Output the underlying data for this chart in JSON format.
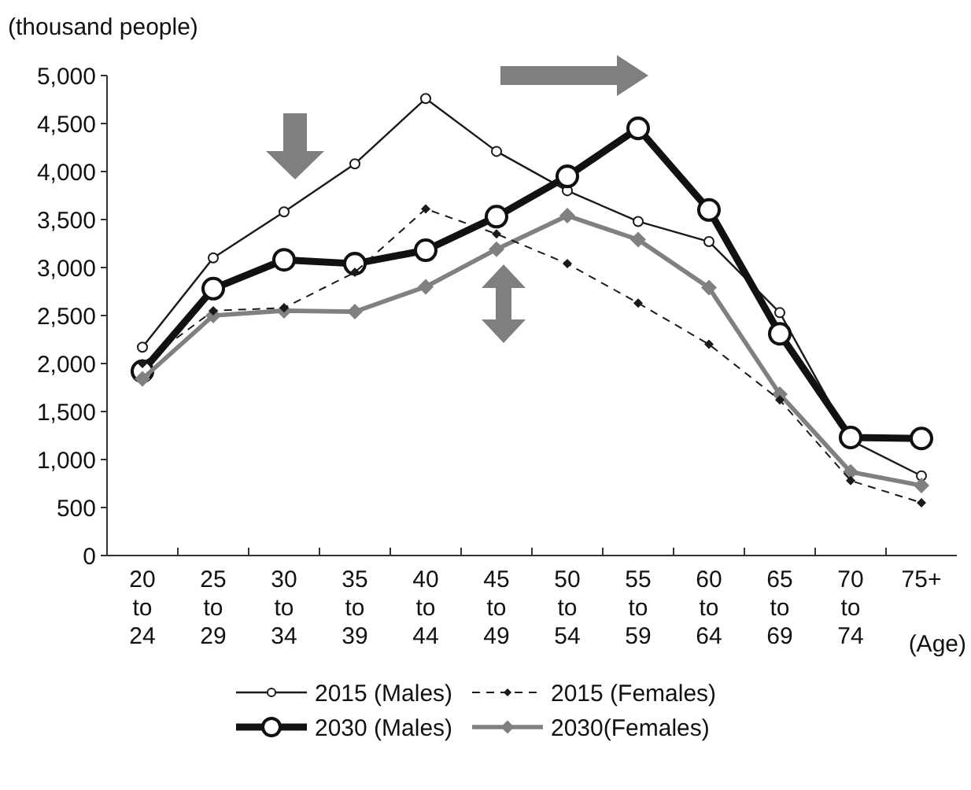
{
  "chart_data": {
    "type": "line",
    "ylabel": "(thousand people)",
    "xlabel": "(Age)",
    "categories": [
      "20 to 24",
      "25 to 29",
      "30 to 34",
      "35 to 39",
      "40 to 44",
      "45 to 49",
      "50 to 54",
      "55 to 59",
      "60 to 64",
      "65 to 69",
      "70 to 74",
      "75+"
    ],
    "ylim": [
      0,
      5000
    ],
    "yticks": [
      {
        "value": 0,
        "label": "0"
      },
      {
        "value": 500,
        "label": "500"
      },
      {
        "value": 1000,
        "label": "1,000"
      },
      {
        "value": 1500,
        "label": "1,500"
      },
      {
        "value": 2000,
        "label": "2,000"
      },
      {
        "value": 2500,
        "label": "2,500"
      },
      {
        "value": 3000,
        "label": "3,000"
      },
      {
        "value": 3500,
        "label": "3,500"
      },
      {
        "value": 4000,
        "label": "4,000"
      },
      {
        "value": 4500,
        "label": "4,500"
      },
      {
        "value": 5000,
        "label": "5,000"
      }
    ],
    "grid": false,
    "legend": "bottom",
    "series": [
      {
        "name": "2015 (Males)",
        "color": "#1a1a1a",
        "marker": "circle",
        "line_style": "solid",
        "values": [
          2170,
          3100,
          3580,
          4080,
          4760,
          4210,
          3800,
          3480,
          3270,
          2530,
          1200,
          830
        ]
      },
      {
        "name": "2015 (Females)",
        "color": "#1a1a1a",
        "marker": "diamond",
        "line_style": "dashed",
        "values": [
          2000,
          2550,
          2580,
          2950,
          3610,
          3350,
          3040,
          2630,
          2200,
          1620,
          780,
          550
        ]
      },
      {
        "name": "2030 (Males)",
        "color": "#111111",
        "marker": "circle",
        "line_style": "solid",
        "values": [
          1920,
          2780,
          3080,
          3040,
          3180,
          3530,
          3950,
          4450,
          3600,
          2310,
          1230,
          1220
        ]
      },
      {
        "name": "2030(Females)",
        "color": "#808080",
        "marker": "diamond",
        "line_style": "solid",
        "values": [
          1840,
          2500,
          2550,
          2540,
          2800,
          3190,
          3540,
          3290,
          2790,
          1680,
          870,
          730
        ]
      }
    ]
  }
}
